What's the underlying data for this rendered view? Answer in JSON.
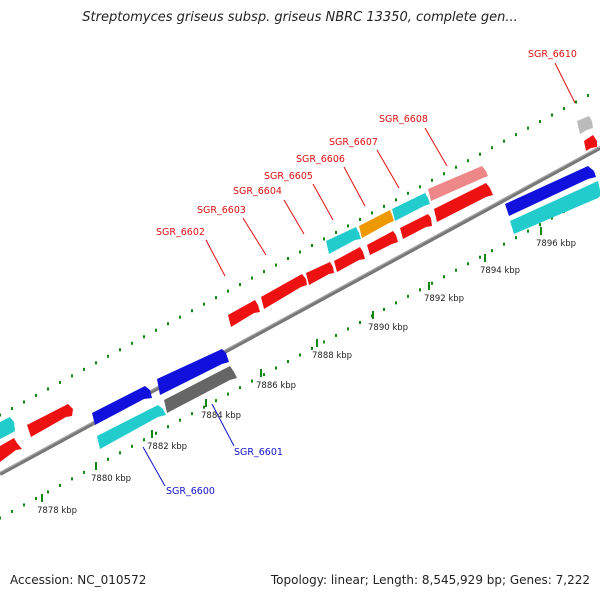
{
  "title": "Streptomyces griseus subsp. griseus NBRC 13350, complete gen...",
  "footer": {
    "accession": "Accession: NC_010572",
    "summary": "Topology: linear; Length: 8,545,929 bp; Genes: 7,222"
  },
  "colors": {
    "red": "#ee1111",
    "pink": "#ee8888",
    "cyan": "#22cccc",
    "blue": "#1111dd",
    "orange": "#ee9900",
    "dark_gray": "#666666",
    "light_gray": "#bbbbbb",
    "backbone": "#777777",
    "ticks": "#118811",
    "label_red": "#dd1111",
    "label_blue": "#1111cc"
  },
  "ticks": [
    "7878 kbp",
    "7880 kbp",
    "7882 kbp",
    "7884 kbp",
    "7886 kbp",
    "7888 kbp",
    "7890 kbp",
    "7892 kbp",
    "7894 kbp",
    "7896 kbp"
  ],
  "labels": [
    "SGR_6600",
    "SGR_6601",
    "SGR_6602",
    "SGR_6603",
    "SGR_6604",
    "SGR_6605",
    "SGR_6606",
    "SGR_6607",
    "SGR_6608",
    "SGR_6610"
  ]
}
